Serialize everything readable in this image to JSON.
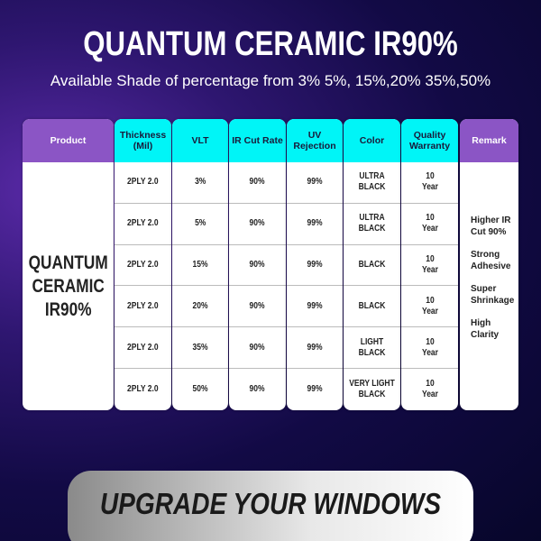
{
  "title": "QUANTUM CERAMIC IR90%",
  "subtitle": "Available Shade of percentage from 3% 5%, 15%,20% 35%,50%",
  "colors": {
    "product_header": "#8b55c5",
    "spec_header": "#00f5f7",
    "background": "#1a0d55"
  },
  "table": {
    "headers": {
      "product": "Product",
      "thickness": "Thickness (Mil)",
      "vlt": "VLT",
      "ir": "IR Cut Rate",
      "uv": "UV Rejection",
      "color": "Color",
      "warranty": "Quality Warranty",
      "remark": "Remark"
    },
    "product_name": "QUANTUM CERAMIC IR90%",
    "rows": [
      {
        "thickness": "2PLY 2.0",
        "vlt": "3%",
        "ir": "90%",
        "uv": "99%",
        "color": "ULTRA BLACK",
        "warranty": "10 Year"
      },
      {
        "thickness": "2PLY 2.0",
        "vlt": "5%",
        "ir": "90%",
        "uv": "99%",
        "color": "ULTRA BLACK",
        "warranty": "10 Year"
      },
      {
        "thickness": "2PLY 2.0",
        "vlt": "15%",
        "ir": "90%",
        "uv": "99%",
        "color": "BLACK",
        "warranty": "10 Year"
      },
      {
        "thickness": "2PLY 2.0",
        "vlt": "20%",
        "ir": "90%",
        "uv": "99%",
        "color": "BLACK",
        "warranty": "10 Year"
      },
      {
        "thickness": "2PLY 2.0",
        "vlt": "35%",
        "ir": "90%",
        "uv": "99%",
        "color": "LIGHT BLACK",
        "warranty": "10 Year"
      },
      {
        "thickness": "2PLY 2.0",
        "vlt": "50%",
        "ir": "90%",
        "uv": "99%",
        "color": "VERY LIGHT BLACK",
        "warranty": "10 Year"
      }
    ],
    "remarks": [
      "Higher IR Cut 90%",
      "Strong Adhesive",
      "Super Shrinkage",
      "High Clarity"
    ]
  },
  "banner": "UPGRADE YOUR WINDOWS"
}
